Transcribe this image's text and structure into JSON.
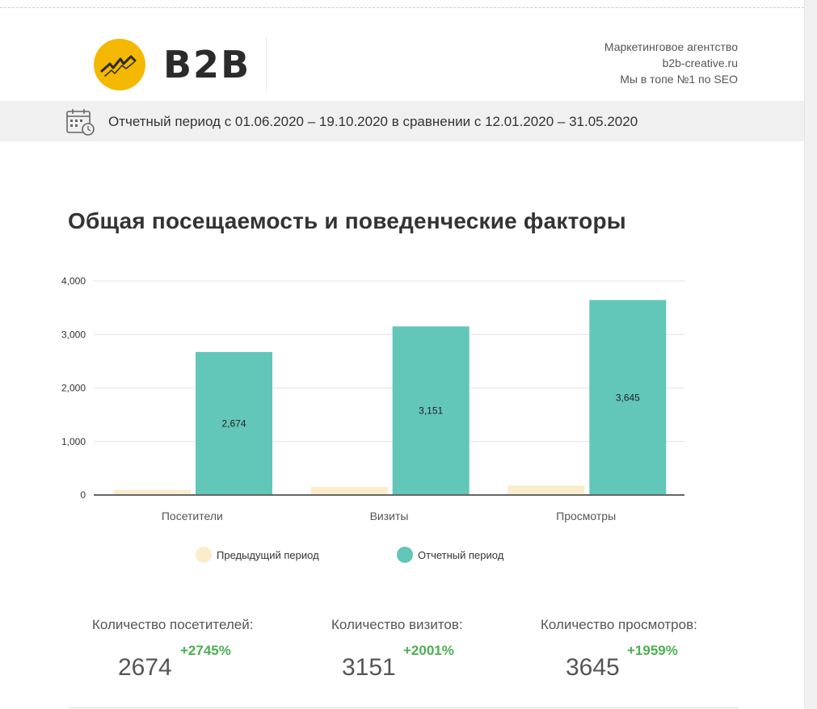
{
  "header": {
    "logo_text": "B2B",
    "agency_lines": [
      "Маркетинговое агентство",
      "b2b-creative.ru",
      "Мы в топе №1 по SEO"
    ]
  },
  "period": {
    "text": "Отчетный период с 01.06.2020 – 19.10.2020 в сравнении с 12.01.2020 – 31.05.2020",
    "icon": "calendar-clock-icon"
  },
  "section": {
    "title": "Общая посещаемость и поведенческие факторы"
  },
  "chart_data": {
    "type": "bar",
    "categories": [
      "Посетители",
      "Визиты",
      "Просмотры"
    ],
    "series": [
      {
        "name": "Предыдущий период",
        "values": [
          94,
          150,
          177
        ],
        "color": "#fbeccb"
      },
      {
        "name": "Отчетный период",
        "values": [
          2674,
          3151,
          3645
        ],
        "color": "#62c6b9"
      }
    ],
    "data_labels": [
      "2,674",
      "3,151",
      "3,645"
    ],
    "yticks": [
      0,
      1000,
      2000,
      3000,
      4000
    ],
    "ytick_labels": [
      "0",
      "1,000",
      "2,000",
      "3,000",
      "4,000"
    ],
    "ylim": [
      0,
      4000
    ],
    "legend_position": "bottom",
    "grid": true
  },
  "stats": [
    {
      "label": "Количество посетителей:",
      "value": "2674",
      "change": "+2745%"
    },
    {
      "label": "Количество визитов:",
      "value": "3151",
      "change": "+2001%"
    },
    {
      "label": "Количество просмотров:",
      "value": "3645",
      "change": "+1959%"
    }
  ],
  "colors": {
    "accent_yellow": "#f5b800",
    "positive": "#4caf50",
    "teal": "#62c6b9",
    "cream": "#fbeccb"
  }
}
